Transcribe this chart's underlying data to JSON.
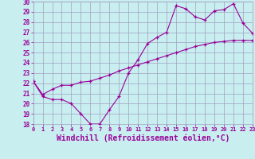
{
  "background_color": "#c8eef0",
  "grid_color": "#a0a0c0",
  "line_color": "#990099",
  "marker": "+",
  "xlim": [
    0,
    23
  ],
  "ylim": [
    18,
    30
  ],
  "yticks": [
    18,
    19,
    20,
    21,
    22,
    23,
    24,
    25,
    26,
    27,
    28,
    29,
    30
  ],
  "xticks": [
    0,
    1,
    2,
    3,
    4,
    5,
    6,
    7,
    8,
    9,
    10,
    11,
    12,
    13,
    14,
    15,
    16,
    17,
    18,
    19,
    20,
    21,
    22,
    23
  ],
  "xlabel": "Windchill (Refroidissement éolien,°C)",
  "line1_x": [
    0,
    1,
    2,
    3,
    4,
    5,
    6,
    7,
    8,
    9,
    10,
    11,
    12,
    13,
    14,
    15,
    16,
    17,
    18,
    19,
    20,
    21,
    22,
    23
  ],
  "line1_y": [
    22.2,
    20.7,
    20.4,
    20.4,
    20.0,
    19.0,
    18.0,
    18.0,
    19.4,
    20.7,
    23.0,
    24.3,
    25.9,
    26.5,
    27.0,
    29.6,
    29.3,
    28.5,
    28.2,
    29.1,
    29.2,
    29.8,
    27.9,
    26.9
  ],
  "line2_x": [
    0,
    1,
    2,
    3,
    4,
    5,
    6,
    7,
    8,
    9,
    10,
    11,
    12,
    13,
    14,
    15,
    16,
    17,
    18,
    19,
    20,
    21,
    22,
    23
  ],
  "line2_y": [
    22.2,
    20.9,
    21.4,
    21.8,
    21.8,
    22.1,
    22.2,
    22.5,
    22.8,
    23.2,
    23.5,
    23.8,
    24.1,
    24.4,
    24.7,
    25.0,
    25.3,
    25.6,
    25.8,
    26.0,
    26.1,
    26.2,
    26.2,
    26.2
  ]
}
